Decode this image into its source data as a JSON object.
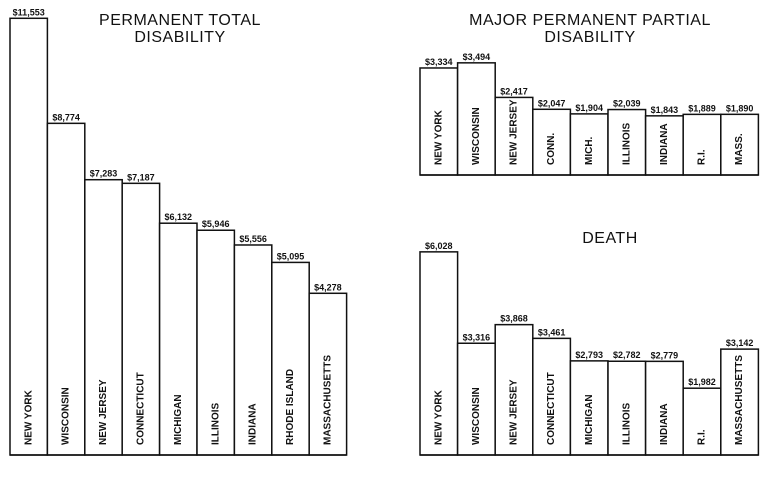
{
  "chart_data": [
    {
      "type": "bar",
      "title": "PERMANENT TOTAL DISABILITY",
      "categories": [
        "NEW YORK",
        "WISCONSIN",
        "NEW JERSEY",
        "CONNECTICUT",
        "MICHIGAN",
        "ILLINOIS",
        "INDIANA",
        "RHODE ISLAND",
        "MASSACHUSETTS"
      ],
      "values": [
        11553,
        8774,
        7283,
        7187,
        6132,
        5946,
        5556,
        5095,
        4278
      ],
      "value_labels": [
        "$11,553",
        "$8,774",
        "$7,283",
        "$7,187",
        "$6,132",
        "$5,946",
        "$5,556",
        "$5,095",
        "$4,278"
      ],
      "color": "#ffffff"
    },
    {
      "type": "bar",
      "title": "MAJOR PERMANENT PARTIAL DISABILITY",
      "categories": [
        "NEW YORK",
        "WISCONSIN",
        "NEW JERSEY",
        "CONN.",
        "MICH.",
        "ILLINOIS",
        "INDIANA",
        "R.I.",
        "MASS."
      ],
      "values": [
        3334,
        3494,
        2417,
        2047,
        1904,
        2039,
        1843,
        1889,
        1890
      ],
      "value_labels": [
        "$3,334",
        "$3,494",
        "$2,417",
        "$2,047",
        "$1,904",
        "$2,039",
        "$1,843",
        "$1,889",
        "$1,890"
      ],
      "color": "#ffffff"
    },
    {
      "type": "bar",
      "title": "DEATH",
      "categories": [
        "NEW YORK",
        "WISCONSIN",
        "NEW JERSEY",
        "CONNECTICUT",
        "MICHIGAN",
        "ILLINOIS",
        "INDIANA",
        "R.I.",
        "MASSACHUSETTS"
      ],
      "values": [
        6028,
        3316,
        3868,
        3461,
        2793,
        2782,
        2779,
        1982,
        3142
      ],
      "value_labels": [
        "$6,028",
        "$3,316",
        "$3,868",
        "$3,461",
        "$2,793",
        "$2,782",
        "$2,779",
        "$1,982",
        "$3,142"
      ],
      "color": "#ffffff"
    }
  ]
}
